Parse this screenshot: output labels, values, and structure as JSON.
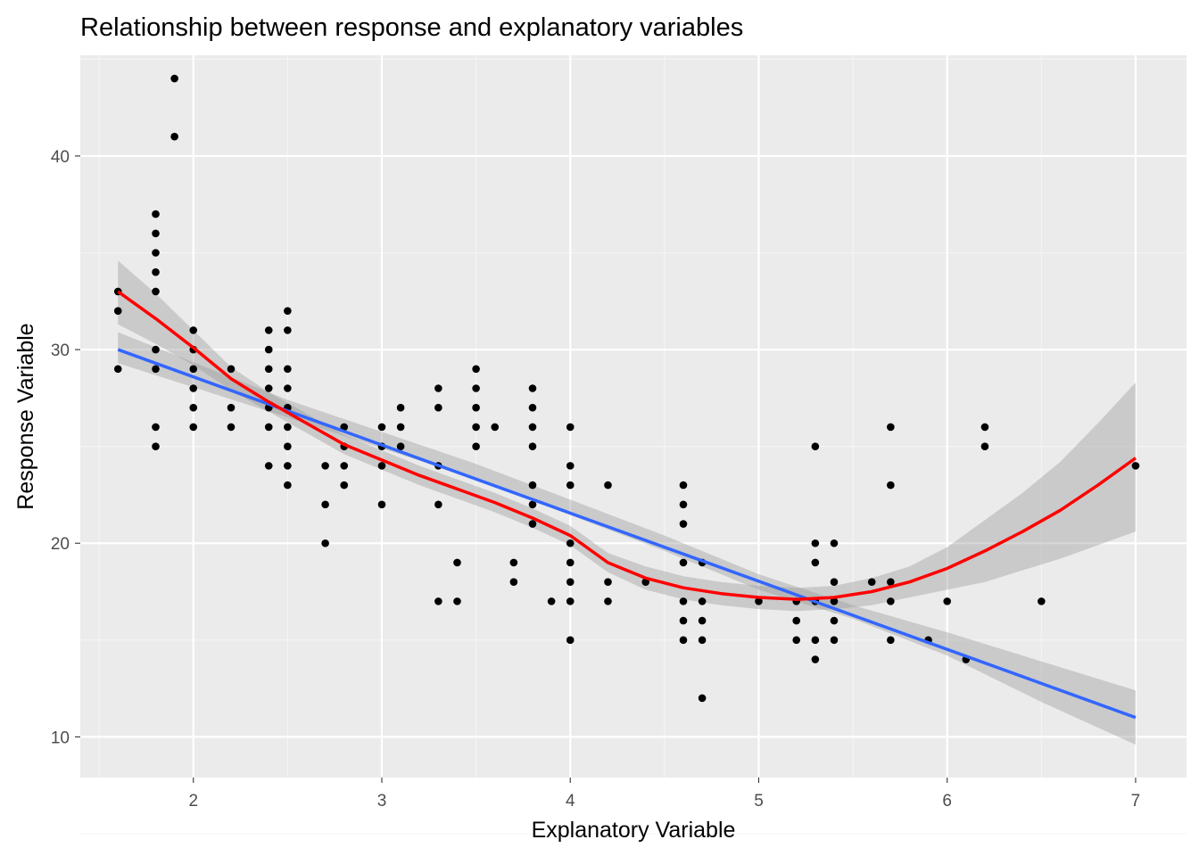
{
  "chart_data": {
    "type": "scatter",
    "title": "Relationship between response and explanatory variables",
    "xlabel": "Explanatory Variable",
    "ylabel": "Response Variable",
    "xlim": [
      1.4,
      7.27
    ],
    "ylim": [
      7.9,
      45.2
    ],
    "x_ticks": [
      2,
      3,
      4,
      5,
      6,
      7
    ],
    "y_ticks": [
      10,
      20,
      30,
      40
    ],
    "x_tick_labels": [
      "2",
      "3",
      "4",
      "5",
      "6",
      "7"
    ],
    "y_tick_labels": [
      "10",
      "20",
      "30",
      "40"
    ],
    "grid": true,
    "background": "#ebebeb",
    "colors": {
      "points": "#000000",
      "linear_fit": "#3366ff",
      "loess_fit": "#ff0000",
      "confidence_band": "#999999"
    },
    "points": [
      [
        1.6,
        33
      ],
      [
        1.6,
        32
      ],
      [
        1.6,
        29
      ],
      [
        1.8,
        37
      ],
      [
        1.8,
        36
      ],
      [
        1.8,
        35
      ],
      [
        1.8,
        34
      ],
      [
        1.8,
        33
      ],
      [
        1.8,
        30
      ],
      [
        1.8,
        29
      ],
      [
        1.8,
        26
      ],
      [
        1.8,
        25
      ],
      [
        1.9,
        44
      ],
      [
        1.9,
        41
      ],
      [
        2.0,
        31
      ],
      [
        2.0,
        30
      ],
      [
        2.0,
        29
      ],
      [
        2.0,
        28
      ],
      [
        2.0,
        27
      ],
      [
        2.0,
        26
      ],
      [
        2.2,
        29
      ],
      [
        2.2,
        27
      ],
      [
        2.2,
        26
      ],
      [
        2.4,
        31
      ],
      [
        2.4,
        30
      ],
      [
        2.4,
        29
      ],
      [
        2.4,
        28
      ],
      [
        2.4,
        27
      ],
      [
        2.4,
        26
      ],
      [
        2.4,
        24
      ],
      [
        2.5,
        32
      ],
      [
        2.5,
        31
      ],
      [
        2.5,
        29
      ],
      [
        2.5,
        28
      ],
      [
        2.5,
        27
      ],
      [
        2.5,
        26
      ],
      [
        2.5,
        25
      ],
      [
        2.5,
        24
      ],
      [
        2.5,
        23
      ],
      [
        2.7,
        24
      ],
      [
        2.7,
        22
      ],
      [
        2.7,
        20
      ],
      [
        2.8,
        26
      ],
      [
        2.8,
        25
      ],
      [
        2.8,
        24
      ],
      [
        2.8,
        23
      ],
      [
        3.0,
        26
      ],
      [
        3.0,
        25
      ],
      [
        3.0,
        24
      ],
      [
        3.0,
        22
      ],
      [
        3.1,
        27
      ],
      [
        3.1,
        26
      ],
      [
        3.1,
        25
      ],
      [
        3.3,
        28
      ],
      [
        3.3,
        27
      ],
      [
        3.3,
        24
      ],
      [
        3.3,
        22
      ],
      [
        3.3,
        17
      ],
      [
        3.4,
        19
      ],
      [
        3.4,
        17
      ],
      [
        3.5,
        29
      ],
      [
        3.5,
        28
      ],
      [
        3.5,
        27
      ],
      [
        3.5,
        26
      ],
      [
        3.5,
        25
      ],
      [
        3.6,
        26
      ],
      [
        3.7,
        19
      ],
      [
        3.7,
        18
      ],
      [
        3.8,
        28
      ],
      [
        3.8,
        27
      ],
      [
        3.8,
        26
      ],
      [
        3.8,
        25
      ],
      [
        3.8,
        23
      ],
      [
        3.8,
        22
      ],
      [
        3.8,
        21
      ],
      [
        3.9,
        17
      ],
      [
        4.0,
        26
      ],
      [
        4.0,
        24
      ],
      [
        4.0,
        23
      ],
      [
        4.0,
        20
      ],
      [
        4.0,
        19
      ],
      [
        4.0,
        18
      ],
      [
        4.0,
        17
      ],
      [
        4.0,
        15
      ],
      [
        4.2,
        23
      ],
      [
        4.2,
        18
      ],
      [
        4.2,
        17
      ],
      [
        4.4,
        18
      ],
      [
        4.6,
        23
      ],
      [
        4.6,
        22
      ],
      [
        4.6,
        21
      ],
      [
        4.6,
        19
      ],
      [
        4.6,
        17
      ],
      [
        4.6,
        16
      ],
      [
        4.6,
        15
      ],
      [
        4.7,
        19
      ],
      [
        4.7,
        17
      ],
      [
        4.7,
        16
      ],
      [
        4.7,
        15
      ],
      [
        4.7,
        12
      ],
      [
        5.0,
        17
      ],
      [
        5.2,
        17
      ],
      [
        5.2,
        16
      ],
      [
        5.2,
        15
      ],
      [
        5.3,
        25
      ],
      [
        5.3,
        20
      ],
      [
        5.3,
        19
      ],
      [
        5.3,
        17
      ],
      [
        5.3,
        15
      ],
      [
        5.3,
        14
      ],
      [
        5.4,
        20
      ],
      [
        5.4,
        18
      ],
      [
        5.4,
        17
      ],
      [
        5.4,
        16
      ],
      [
        5.4,
        15
      ],
      [
        5.6,
        18
      ],
      [
        5.7,
        26
      ],
      [
        5.7,
        23
      ],
      [
        5.7,
        18
      ],
      [
        5.7,
        17
      ],
      [
        5.7,
        15
      ],
      [
        5.9,
        15
      ],
      [
        6.0,
        17
      ],
      [
        6.1,
        14
      ],
      [
        6.2,
        26
      ],
      [
        6.2,
        25
      ],
      [
        6.5,
        17
      ],
      [
        7.0,
        24
      ]
    ],
    "linear_fit": {
      "x": [
        1.6,
        7.0
      ],
      "y": [
        30.0,
        11.0
      ],
      "band_lower": [
        [
          1.6,
          29.3
        ],
        [
          2.5,
          26.5
        ],
        [
          3.5,
          23.3
        ],
        [
          4.5,
          19.6
        ],
        [
          5.0,
          17.6
        ],
        [
          5.5,
          16.1
        ],
        [
          6.0,
          14.2
        ],
        [
          6.5,
          11.8
        ],
        [
          7.0,
          9.6
        ]
      ],
      "band_upper": [
        [
          1.6,
          30.9
        ],
        [
          2.5,
          27.4
        ],
        [
          3.5,
          24.1
        ],
        [
          4.5,
          20.4
        ],
        [
          5.0,
          18.4
        ],
        [
          5.5,
          16.8
        ],
        [
          6.0,
          15.4
        ],
        [
          6.5,
          13.9
        ],
        [
          7.0,
          12.4
        ]
      ]
    },
    "loess_fit": {
      "points": [
        [
          1.6,
          33.0
        ],
        [
          1.8,
          31.6
        ],
        [
          2.0,
          30.1
        ],
        [
          2.2,
          28.5
        ],
        [
          2.4,
          27.3
        ],
        [
          2.6,
          26.2
        ],
        [
          2.8,
          25.1
        ],
        [
          3.0,
          24.3
        ],
        [
          3.2,
          23.5
        ],
        [
          3.4,
          22.8
        ],
        [
          3.6,
          22.1
        ],
        [
          3.8,
          21.3
        ],
        [
          4.0,
          20.4
        ],
        [
          4.2,
          19.0
        ],
        [
          4.4,
          18.2
        ],
        [
          4.6,
          17.7
        ],
        [
          4.8,
          17.4
        ],
        [
          5.0,
          17.2
        ],
        [
          5.2,
          17.1
        ],
        [
          5.4,
          17.2
        ],
        [
          5.6,
          17.5
        ],
        [
          5.8,
          18.0
        ],
        [
          6.0,
          18.7
        ],
        [
          6.2,
          19.6
        ],
        [
          6.4,
          20.6
        ],
        [
          6.6,
          21.7
        ],
        [
          6.8,
          23.0
        ],
        [
          7.0,
          24.4
        ]
      ],
      "band_lower": [
        [
          1.6,
          31.3
        ],
        [
          1.8,
          30.3
        ],
        [
          2.0,
          29.2
        ],
        [
          2.2,
          27.9
        ],
        [
          2.4,
          26.8
        ],
        [
          2.6,
          25.7
        ],
        [
          2.8,
          24.6
        ],
        [
          3.0,
          23.8
        ],
        [
          3.2,
          23.0
        ],
        [
          3.4,
          22.3
        ],
        [
          3.6,
          21.6
        ],
        [
          3.8,
          20.8
        ],
        [
          4.0,
          19.9
        ],
        [
          4.2,
          18.5
        ],
        [
          4.4,
          17.6
        ],
        [
          4.6,
          17.1
        ],
        [
          4.8,
          16.8
        ],
        [
          5.0,
          16.6
        ],
        [
          5.2,
          16.5
        ],
        [
          5.4,
          16.6
        ],
        [
          5.6,
          16.8
        ],
        [
          5.8,
          17.2
        ],
        [
          6.0,
          17.6
        ],
        [
          6.2,
          18.0
        ],
        [
          6.4,
          18.6
        ],
        [
          6.6,
          19.2
        ],
        [
          6.8,
          19.9
        ],
        [
          7.0,
          20.6
        ]
      ],
      "band_upper": [
        [
          1.6,
          34.6
        ],
        [
          1.8,
          32.9
        ],
        [
          2.0,
          31.0
        ],
        [
          2.2,
          29.1
        ],
        [
          2.4,
          27.8
        ],
        [
          2.6,
          26.7
        ],
        [
          2.8,
          25.6
        ],
        [
          3.0,
          24.8
        ],
        [
          3.2,
          24.0
        ],
        [
          3.4,
          23.3
        ],
        [
          3.6,
          22.6
        ],
        [
          3.8,
          21.8
        ],
        [
          4.0,
          20.9
        ],
        [
          4.2,
          19.5
        ],
        [
          4.4,
          18.8
        ],
        [
          4.6,
          18.3
        ],
        [
          4.8,
          18.0
        ],
        [
          5.0,
          17.8
        ],
        [
          5.2,
          17.7
        ],
        [
          5.4,
          17.8
        ],
        [
          5.6,
          18.2
        ],
        [
          5.8,
          18.8
        ],
        [
          6.0,
          19.8
        ],
        [
          6.2,
          21.2
        ],
        [
          6.4,
          22.6
        ],
        [
          6.6,
          24.2
        ],
        [
          6.8,
          26.2
        ],
        [
          7.0,
          28.3
        ]
      ]
    }
  }
}
